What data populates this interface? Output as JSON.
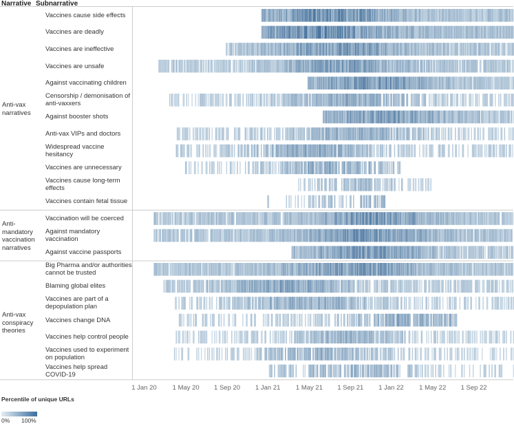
{
  "headers": {
    "narrative": "Narrative",
    "subnarrative": "Subnarrative"
  },
  "narratives": [
    {
      "label": "Anti-vax narratives"
    },
    {
      "label": "Anti-mandatory vaccination narratives"
    },
    {
      "label": "Anti-vax conspiracy theories"
    }
  ],
  "legend": {
    "title": "Percentile of unique URLs",
    "min_label": "0%",
    "max_label": "100%"
  },
  "colors": {
    "low": "#e4eef4",
    "high": "#2f5f8f",
    "grid": "#cccccc"
  },
  "chart_data": {
    "type": "heatmap",
    "title": "",
    "xlabel": "",
    "ylabel": "Subnarrative",
    "color_metric": "Percentile of unique URLs",
    "color_range": [
      "0%",
      "100%"
    ],
    "x_range": [
      "2019-12-01",
      "2022-12-31"
    ],
    "x_ticks": [
      "1 Jan 20",
      "1 May 20",
      "1 Sep 20",
      "1 Jan 21",
      "1 May 21",
      "1 Sep 21",
      "1 Jan 22",
      "1 May 22",
      "1 Sep 22"
    ],
    "rows": [
      {
        "narrative": "Anti-vax narratives",
        "label": "Vaccines cause side effects",
        "active_from": "2020-12-15",
        "active_to": "2022-12-31",
        "density": 0.97,
        "intensity": 0.78,
        "peak": "2021-07-01"
      },
      {
        "narrative": "Anti-vax narratives",
        "label": "Vaccines are deadly",
        "active_from": "2020-12-15",
        "active_to": "2022-12-31",
        "density": 1.0,
        "intensity": 0.85,
        "peak": "2021-06-15"
      },
      {
        "narrative": "Anti-vax narratives",
        "label": "Vaccines are ineffective",
        "active_from": "2020-09-01",
        "active_to": "2022-12-31",
        "density": 0.92,
        "intensity": 0.72,
        "peak": "2021-08-01"
      },
      {
        "narrative": "Anti-vax narratives",
        "label": "Vaccines are unsafe",
        "active_from": "2020-02-15",
        "active_to": "2022-12-31",
        "density": 0.85,
        "intensity": 0.65,
        "peak": "2021-08-15"
      },
      {
        "narrative": "Anti-vax narratives",
        "label": "Against vaccinating children",
        "active_from": "2021-05-01",
        "active_to": "2022-12-31",
        "density": 0.95,
        "intensity": 0.7,
        "peak": "2021-11-01"
      },
      {
        "narrative": "Anti-vax narratives",
        "label": "Censorship / demonisation of anti-vaxxers",
        "active_from": "2020-03-15",
        "active_to": "2022-12-31",
        "density": 0.55,
        "intensity": 0.55,
        "peak": "2021-09-01"
      },
      {
        "narrative": "Anti-vax narratives",
        "label": "Against booster shots",
        "active_from": "2021-06-15",
        "active_to": "2022-12-31",
        "density": 0.9,
        "intensity": 0.68,
        "peak": "2021-12-15"
      },
      {
        "narrative": "Anti-vax narratives",
        "label": "Anti-vax VIPs and doctors",
        "active_from": "2020-04-01",
        "active_to": "2022-12-31",
        "density": 0.5,
        "intensity": 0.55,
        "peak": "2021-09-15"
      },
      {
        "narrative": "Anti-vax narratives",
        "label": "Widespread vaccine hesitancy",
        "active_from": "2020-04-01",
        "active_to": "2022-12-31",
        "density": 0.55,
        "intensity": 0.55,
        "peak": "2021-05-15"
      },
      {
        "narrative": "Anti-vax narratives",
        "label": "Vaccines are unnecessary",
        "active_from": "2020-04-15",
        "active_to": "2022-02-15",
        "density": 0.35,
        "intensity": 0.55,
        "peak": "2021-07-15"
      },
      {
        "narrative": "Anti-vax narratives",
        "label": "Vaccines cause long-term effects",
        "active_from": "2021-04-01",
        "active_to": "2022-05-01",
        "density": 0.3,
        "intensity": 0.4,
        "peak": "2021-10-01"
      },
      {
        "narrative": "Anti-vax narratives",
        "label": "Vaccines contain fetal tissue",
        "active_from": "2020-12-01",
        "active_to": "2021-12-15",
        "density": 0.12,
        "intensity": 0.45,
        "peak": "2021-11-15"
      },
      {
        "narrative": "Anti-mandatory vaccination narratives",
        "label": "Vaccination will be coerced",
        "active_from": "2020-02-01",
        "active_to": "2022-12-31",
        "density": 0.9,
        "intensity": 0.72,
        "peak": "2021-11-15"
      },
      {
        "narrative": "Anti-mandatory vaccination narratives",
        "label": "Against mandatory vaccination",
        "active_from": "2020-02-01",
        "active_to": "2022-12-31",
        "density": 0.9,
        "intensity": 0.72,
        "peak": "2021-10-15"
      },
      {
        "narrative": "Anti-mandatory vaccination narratives",
        "label": "Against vaccine passports",
        "active_from": "2021-03-15",
        "active_to": "2022-12-31",
        "density": 0.85,
        "intensity": 0.68,
        "peak": "2021-10-15"
      },
      {
        "narrative": "Anti-vax conspiracy theories",
        "label": "Big Pharma and/or authorities cannot be trusted",
        "active_from": "2020-02-01",
        "active_to": "2022-12-31",
        "density": 0.95,
        "intensity": 0.72,
        "peak": "2021-09-15"
      },
      {
        "narrative": "Anti-vax conspiracy theories",
        "label": "Blaming global elites",
        "active_from": "2020-03-01",
        "active_to": "2022-12-31",
        "density": 0.7,
        "intensity": 0.6,
        "peak": "2021-03-01"
      },
      {
        "narrative": "Anti-vax conspiracy theories",
        "label": "Vaccines are part of a depopulation plan",
        "active_from": "2020-04-01",
        "active_to": "2022-12-31",
        "density": 0.55,
        "intensity": 0.55,
        "peak": "2021-05-01"
      },
      {
        "narrative": "Anti-vax conspiracy theories",
        "label": "Vaccines change DNA",
        "active_from": "2020-04-15",
        "active_to": "2022-07-15",
        "density": 0.45,
        "intensity": 0.55,
        "peak": "2022-03-01"
      },
      {
        "narrative": "Anti-vax conspiracy theories",
        "label": "Vaccines help control people",
        "active_from": "2020-04-01",
        "active_to": "2022-12-31",
        "density": 0.5,
        "intensity": 0.5,
        "peak": "2021-09-01"
      },
      {
        "narrative": "Anti-vax conspiracy theories",
        "label": "Vaccines used to experiment on population",
        "active_from": "2020-04-01",
        "active_to": "2022-12-31",
        "density": 0.4,
        "intensity": 0.5,
        "peak": "2021-06-01"
      },
      {
        "narrative": "Anti-vax conspiracy theories",
        "label": "Vaccines help spread COVID-19",
        "active_from": "2021-01-01",
        "active_to": "2022-12-31",
        "density": 0.3,
        "intensity": 0.5,
        "peak": "2021-09-15"
      }
    ]
  }
}
